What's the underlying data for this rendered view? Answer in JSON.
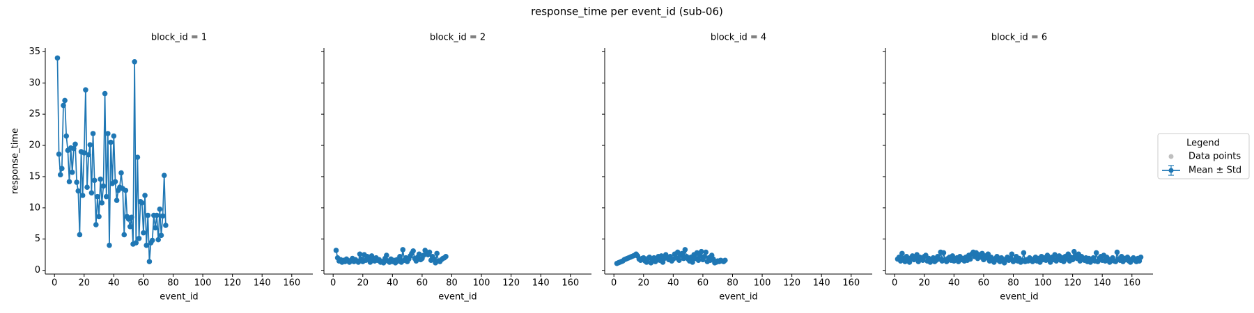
{
  "title": "response_time per event_id (sub-06)",
  "legend": {
    "title": "Legend",
    "entries": [
      {
        "name": "Data points",
        "color": "#bfbfbf"
      },
      {
        "name": "Mean ± Std",
        "color": "#1f77b4"
      }
    ]
  },
  "chart_data": [
    {
      "type": "line",
      "title": "block_id = 1",
      "xlabel": "event_id",
      "ylabel": "response_time",
      "color": "#1f77b4",
      "xlim": [
        -6.2,
        174.2
      ],
      "ylim": [
        -0.6,
        35.6
      ],
      "xticks": [
        0,
        20,
        40,
        60,
        80,
        100,
        120,
        140,
        160
      ],
      "yticks": [
        0,
        5,
        10,
        15,
        20,
        25,
        30,
        35
      ],
      "x": [
        2,
        3,
        4,
        5,
        6,
        7,
        8,
        9,
        10,
        11,
        12,
        13,
        14,
        15,
        16,
        17,
        18,
        19,
        20,
        21,
        22,
        23,
        24,
        25,
        26,
        27,
        28,
        29,
        30,
        31,
        32,
        33,
        34,
        35,
        36,
        37,
        38,
        39,
        40,
        41,
        42,
        43,
        44,
        45,
        46,
        47,
        48,
        49,
        50,
        51,
        52,
        53,
        54,
        55,
        56,
        57,
        58,
        59,
        60,
        61,
        62,
        63,
        64,
        65,
        66,
        67,
        68,
        69,
        70,
        71,
        72,
        73,
        74,
        75
      ],
      "values": [
        34,
        18.6,
        15.3,
        16.3,
        26.4,
        27.2,
        21.5,
        19.2,
        14.2,
        19.6,
        15.7,
        19.5,
        20.2,
        14.1,
        12.7,
        5.7,
        19,
        12,
        18.8,
        28.9,
        13.3,
        18.5,
        20.1,
        12.4,
        21.9,
        14.4,
        7.3,
        11.8,
        8.6,
        14.6,
        10.8,
        13.5,
        28.3,
        11.8,
        21.9,
        4,
        20.5,
        13.9,
        21.5,
        14.2,
        11.2,
        12.8,
        13.3,
        15.6,
        13.1,
        5.7,
        12.8,
        8.6,
        8.2,
        7,
        8.5,
        4.2,
        33.4,
        4.4,
        18.1,
        5.1,
        11,
        10.8,
        6,
        12,
        4,
        8.8,
        1.4,
        4.4,
        4.8,
        8.8,
        6.8,
        8.8,
        4.9,
        9.8,
        5.6,
        8.7,
        15.2,
        7.2
      ]
    },
    {
      "type": "line",
      "title": "block_id = 2",
      "xlabel": "event_id",
      "color": "#1f77b4",
      "xlim": [
        -6.2,
        174.2
      ],
      "ylim": [
        -0.6,
        35.6
      ],
      "xticks": [
        0,
        20,
        40,
        60,
        80,
        100,
        120,
        140,
        160
      ],
      "yticks": [
        0,
        5,
        10,
        15,
        20,
        25,
        30,
        35
      ],
      "x": [
        2,
        3,
        4,
        5,
        6,
        7,
        8,
        9,
        10,
        11,
        12,
        13,
        14,
        15,
        16,
        17,
        18,
        19,
        20,
        21,
        22,
        23,
        24,
        25,
        26,
        27,
        28,
        29,
        30,
        31,
        32,
        33,
        34,
        35,
        36,
        37,
        38,
        39,
        40,
        41,
        42,
        43,
        44,
        45,
        46,
        47,
        48,
        49,
        50,
        51,
        52,
        53,
        54,
        55,
        56,
        57,
        58,
        59,
        60,
        61,
        62,
        63,
        64,
        65,
        66,
        67,
        68,
        69,
        70,
        71,
        72,
        73,
        74,
        75,
        76
      ],
      "values": [
        3.2,
        2.0,
        1.5,
        1.7,
        1.3,
        1.6,
        1.4,
        1.8,
        1.5,
        1.3,
        1.6,
        1.9,
        1.4,
        1.7,
        1.5,
        1.3,
        2.6,
        1.8,
        1.4,
        2.5,
        1.6,
        2.2,
        1.9,
        1.3,
        2.3,
        1.8,
        1.5,
        2.0,
        1.6,
        1.7,
        1.3,
        1.4,
        1.2,
        1.9,
        2.4,
        1.5,
        1.3,
        1.8,
        1.4,
        1.6,
        1.2,
        1.7,
        1.5,
        2.2,
        1.3,
        3.3,
        1.6,
        2.0,
        1.4,
        1.8,
        2.3,
        2.7,
        3.1,
        1.9,
        1.5,
        2.1,
        2.6,
        1.7,
        1.9,
        2.4,
        3.2,
        2.8,
        2.5,
        2.9,
        1.6,
        2.2,
        1.8,
        1.2,
        2.7,
        1.5,
        1.4,
        1.7,
        1.9,
        2.0,
        2.2
      ]
    },
    {
      "type": "line",
      "title": "block_id = 4",
      "xlabel": "event_id",
      "color": "#1f77b4",
      "xlim": [
        -6.2,
        174.2
      ],
      "ylim": [
        -0.6,
        35.6
      ],
      "xticks": [
        0,
        20,
        40,
        60,
        80,
        100,
        120,
        140,
        160
      ],
      "yticks": [
        0,
        5,
        10,
        15,
        20,
        25,
        30,
        35
      ],
      "x": [
        2,
        3,
        4,
        5,
        6,
        7,
        8,
        9,
        10,
        11,
        12,
        13,
        14,
        15,
        16,
        17,
        18,
        19,
        20,
        21,
        22,
        23,
        24,
        25,
        26,
        27,
        28,
        29,
        30,
        31,
        32,
        33,
        34,
        35,
        36,
        37,
        38,
        39,
        40,
        41,
        42,
        43,
        44,
        45,
        46,
        47,
        48,
        49,
        50,
        51,
        52,
        53,
        54,
        55,
        56,
        57,
        58,
        59,
        60,
        61,
        62,
        63,
        64,
        65,
        66,
        67,
        68,
        69,
        70,
        71,
        72,
        73,
        74,
        75
      ],
      "values": [
        1.1,
        1.2,
        1.3,
        1.4,
        1.5,
        1.7,
        1.8,
        1.9,
        2.0,
        2.1,
        2.2,
        2.3,
        2.4,
        2.6,
        2.3,
        1.8,
        1.6,
        1.9,
        2.0,
        1.5,
        1.3,
        1.9,
        2.1,
        1.2,
        1.7,
        2.0,
        1.4,
        1.8,
        2.2,
        1.6,
        2.3,
        1.3,
        1.9,
        2.5,
        2.1,
        1.7,
        2.2,
        1.5,
        1.8,
        2.6,
        2.0,
        2.9,
        1.6,
        2.4,
        2.7,
        1.9,
        3.3,
        2.2,
        1.8,
        1.5,
        2.1,
        1.3,
        2.5,
        1.9,
        2.8,
        1.6,
        2.3,
        3.0,
        1.7,
        2.2,
        2.9,
        1.4,
        2.0,
        1.6,
        2.4,
        1.8,
        1.2,
        1.3,
        1.5,
        1.4,
        1.6,
        1.5,
        1.4,
        1.6
      ]
    },
    {
      "type": "line",
      "title": "block_id = 6",
      "xlabel": "event_id",
      "color": "#1f77b4",
      "xlim": [
        -6.2,
        174.2
      ],
      "ylim": [
        -0.6,
        35.6
      ],
      "xticks": [
        0,
        20,
        40,
        60,
        80,
        100,
        120,
        140,
        160
      ],
      "yticks": [
        0,
        5,
        10,
        15,
        20,
        25,
        30,
        35
      ],
      "x": [
        2,
        3,
        4,
        5,
        6,
        7,
        8,
        9,
        10,
        11,
        12,
        13,
        14,
        15,
        16,
        17,
        18,
        19,
        20,
        21,
        22,
        23,
        24,
        25,
        26,
        27,
        28,
        29,
        30,
        31,
        32,
        33,
        34,
        35,
        36,
        37,
        38,
        39,
        40,
        41,
        42,
        43,
        44,
        45,
        46,
        47,
        48,
        49,
        50,
        51,
        52,
        53,
        54,
        55,
        56,
        57,
        58,
        59,
        60,
        61,
        62,
        63,
        64,
        65,
        66,
        67,
        68,
        69,
        70,
        71,
        72,
        73,
        74,
        75,
        76,
        77,
        78,
        79,
        80,
        81,
        82,
        83,
        84,
        85,
        86,
        87,
        88,
        89,
        90,
        91,
        92,
        93,
        94,
        95,
        96,
        97,
        98,
        99,
        100,
        101,
        102,
        103,
        104,
        105,
        106,
        107,
        108,
        109,
        110,
        111,
        112,
        113,
        114,
        115,
        116,
        117,
        118,
        119,
        120,
        121,
        122,
        123,
        124,
        125,
        126,
        127,
        128,
        129,
        130,
        131,
        132,
        133,
        134,
        135,
        136,
        137,
        138,
        139,
        140,
        141,
        142,
        143,
        144,
        145,
        146,
        147,
        148,
        149,
        150,
        151,
        152,
        153,
        154,
        155,
        156,
        157,
        158,
        159,
        160,
        161,
        162,
        163,
        164,
        165,
        166
      ],
      "values": [
        1.8,
        2.1,
        1.5,
        2.7,
        1.9,
        1.4,
        2.2,
        1.6,
        1.3,
        2.0,
        2.3,
        1.7,
        1.9,
        2.5,
        1.4,
        2.1,
        1.8,
        1.6,
        2.2,
        2.4,
        1.5,
        1.9,
        1.3,
        1.7,
        2.0,
        1.4,
        1.6,
        2.2,
        1.8,
        2.9,
        1.5,
        2.8,
        1.7,
        1.4,
        1.9,
        2.1,
        1.6,
        2.3,
        1.5,
        1.8,
        2.0,
        1.4,
        2.2,
        1.7,
        1.9,
        1.5,
        2.1,
        1.6,
        2.4,
        1.8,
        2.6,
        2.9,
        2.2,
        2.8,
        1.9,
        2.5,
        2.1,
        2.7,
        1.7,
        2.3,
        2.0,
        2.6,
        1.5,
        2.1,
        1.8,
        1.3,
        1.9,
        2.2,
        1.6,
        1.4,
        2.0,
        1.5,
        1.2,
        1.8,
        2.1,
        1.6,
        1.9,
        2.6,
        1.4,
        1.7,
        2.2,
        1.5,
        1.9,
        1.3,
        1.6,
        2.8,
        1.4,
        1.7,
        1.5,
        2.0,
        1.8,
        1.4,
        1.6,
        2.1,
        1.5,
        1.9,
        1.3,
        2.2,
        1.7,
        2.0,
        1.6,
        2.4,
        1.8,
        1.3,
        2.1,
        1.7,
        2.5,
        1.5,
        1.9,
        2.3,
        1.6,
        2.0,
        1.4,
        2.2,
        1.8,
        2.6,
        1.5,
        2.1,
        1.7,
        3.0,
        2.3,
        1.9,
        2.6,
        1.5,
        2.2,
        1.8,
        1.6,
        2.0,
        1.4,
        1.9,
        1.3,
        1.7,
        2.0,
        1.5,
        2.8,
        1.4,
        1.9,
        2.2,
        1.6,
        2.4,
        1.5,
        2.1,
        1.8,
        1.3,
        1.7,
        2.0,
        1.5,
        1.4,
        2.9,
        1.8,
        1.6,
        2.2,
        1.4,
        1.9,
        1.7,
        2.1,
        1.5,
        1.3,
        1.8,
        2.0,
        1.6,
        1.4,
        1.9,
        1.5,
        2.1
      ]
    }
  ]
}
